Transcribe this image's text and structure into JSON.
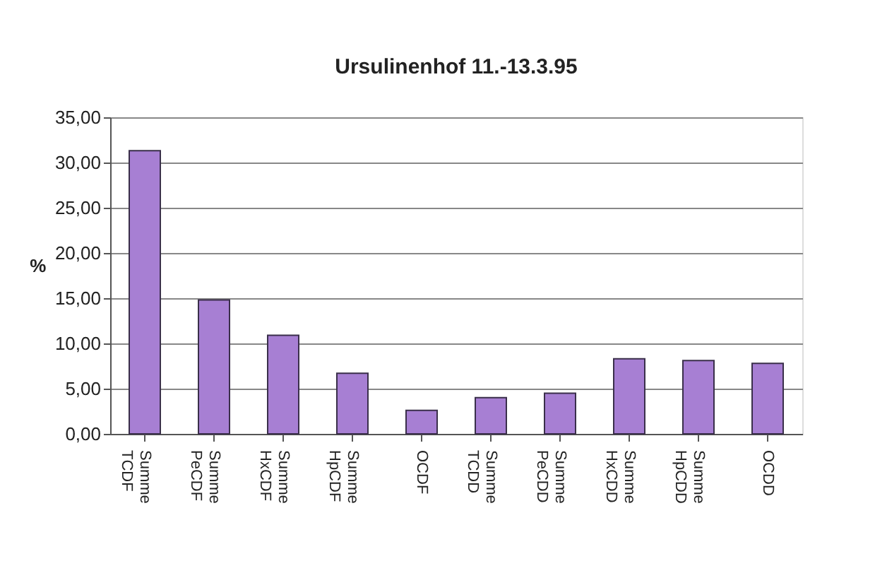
{
  "chart_data": {
    "type": "bar",
    "title": "Ursulinenhof 11.-13.3.95",
    "ylabel": "%",
    "categories": [
      "Summe TCDF",
      "Summe PeCDF",
      "Summe HxCDF",
      "Summe HpCDF",
      "OCDF",
      "Summe TCDD",
      "Summe PeCDD",
      "Summe HxCDD",
      "Summe HpCDD",
      "OCDD"
    ],
    "values": [
      31.3,
      14.8,
      10.9,
      6.7,
      2.6,
      4.0,
      4.5,
      8.3,
      8.1,
      7.8
    ],
    "color": "#a77fd3",
    "ylim": [
      0,
      35
    ],
    "yticks": [
      {
        "value": 0,
        "label": "0,00"
      },
      {
        "value": 5,
        "label": "5,00"
      },
      {
        "value": 10,
        "label": "10,00"
      },
      {
        "value": 15,
        "label": "15,00"
      },
      {
        "value": 20,
        "label": "20,00"
      },
      {
        "value": 25,
        "label": "25,00"
      },
      {
        "value": 30,
        "label": "30,00"
      },
      {
        "value": 35,
        "label": "35,00"
      }
    ],
    "grid": "y"
  }
}
